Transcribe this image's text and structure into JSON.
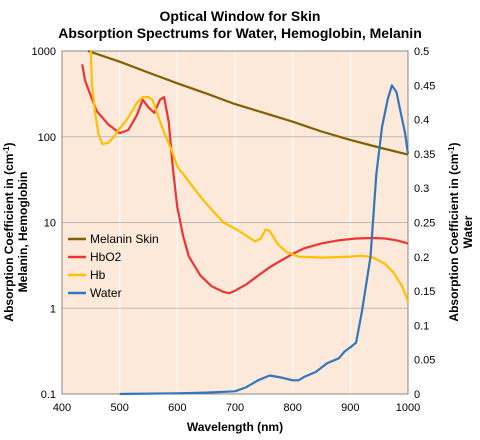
{
  "chart_data": {
    "type": "line",
    "title_line1": "Optical Window for Skin",
    "title_line2": "Absorption Spectrums for Water, Hemoglobin, Melanin",
    "xlabel": "Wavelength (nm)",
    "ylabel_left": {
      "line1_prefix": "Absorption Coefficient in (cm",
      "line1_sup": "-1",
      "line1_suffix": ")",
      "line2": "Melanin, Hemoglobin"
    },
    "ylabel_right": {
      "line1_prefix": "Absorption Coefficient in (cm",
      "line1_sup": "-1",
      "line1_suffix": ")",
      "line2": "Water"
    },
    "xlim": [
      400,
      1000
    ],
    "ylim_left": [
      0.1,
      1000
    ],
    "ylim_right": [
      0,
      0.5
    ],
    "x_ticks": [
      "400",
      "500",
      "600",
      "700",
      "800",
      "900",
      "1000"
    ],
    "y_left_ticks": [
      "0.1",
      "1",
      "10",
      "100",
      "1000"
    ],
    "y_right_ticks": [
      "0",
      "0.05",
      "0.1",
      "0.15",
      "0.2",
      "0.25",
      "0.3",
      "0.35",
      "0.4",
      "0.45",
      "0.5"
    ],
    "background_color": "#fde9d9",
    "grid": true,
    "legend_position": "left-middle",
    "series": [
      {
        "name": "Melanin Skin",
        "axis": "left",
        "color": "#806000",
        "points": [
          [
            445,
            1000
          ],
          [
            500,
            750
          ],
          [
            550,
            560
          ],
          [
            600,
            420
          ],
          [
            650,
            320
          ],
          [
            700,
            240
          ],
          [
            750,
            190
          ],
          [
            800,
            150
          ],
          [
            850,
            115
          ],
          [
            900,
            92
          ],
          [
            950,
            75
          ],
          [
            1000,
            62
          ]
        ]
      },
      {
        "name": "HbO2",
        "axis": "left",
        "color": "#ee3333",
        "points": [
          [
            435,
            700
          ],
          [
            440,
            450
          ],
          [
            450,
            300
          ],
          [
            460,
            200
          ],
          [
            480,
            140
          ],
          [
            500,
            110
          ],
          [
            515,
            120
          ],
          [
            530,
            180
          ],
          [
            540,
            270
          ],
          [
            550,
            220
          ],
          [
            560,
            190
          ],
          [
            570,
            270
          ],
          [
            577,
            290
          ],
          [
            585,
            150
          ],
          [
            592,
            45
          ],
          [
            600,
            15
          ],
          [
            610,
            7
          ],
          [
            620,
            4
          ],
          [
            640,
            2.4
          ],
          [
            660,
            1.8
          ],
          [
            680,
            1.55
          ],
          [
            690,
            1.5
          ],
          [
            700,
            1.6
          ],
          [
            720,
            1.9
          ],
          [
            740,
            2.4
          ],
          [
            760,
            3.0
          ],
          [
            780,
            3.6
          ],
          [
            800,
            4.3
          ],
          [
            820,
            5.0
          ],
          [
            850,
            5.7
          ],
          [
            880,
            6.2
          ],
          [
            910,
            6.5
          ],
          [
            940,
            6.6
          ],
          [
            960,
            6.5
          ],
          [
            980,
            6.2
          ],
          [
            1000,
            5.7
          ]
        ]
      },
      {
        "name": "Hb",
        "axis": "left",
        "color": "#ffc000",
        "points": [
          [
            450,
            1000
          ],
          [
            452,
            400
          ],
          [
            457,
            200
          ],
          [
            463,
            110
          ],
          [
            470,
            82
          ],
          [
            480,
            85
          ],
          [
            490,
            100
          ],
          [
            500,
            125
          ],
          [
            510,
            150
          ],
          [
            520,
            190
          ],
          [
            530,
            250
          ],
          [
            540,
            290
          ],
          [
            550,
            290
          ],
          [
            557,
            270
          ],
          [
            567,
            170
          ],
          [
            580,
            100
          ],
          [
            590,
            70
          ],
          [
            600,
            45
          ],
          [
            620,
            30
          ],
          [
            640,
            20
          ],
          [
            660,
            14
          ],
          [
            680,
            10
          ],
          [
            700,
            8.5
          ],
          [
            720,
            7
          ],
          [
            735,
            6
          ],
          [
            745,
            6.5
          ],
          [
            753,
            8.3
          ],
          [
            760,
            8.0
          ],
          [
            775,
            5.5
          ],
          [
            790,
            4.5
          ],
          [
            810,
            4.0
          ],
          [
            850,
            3.9
          ],
          [
            900,
            4.0
          ],
          [
            920,
            4.1
          ],
          [
            940,
            3.9
          ],
          [
            960,
            3.3
          ],
          [
            975,
            2.6
          ],
          [
            990,
            1.8
          ],
          [
            1000,
            1.2
          ]
        ]
      },
      {
        "name": "Water",
        "axis": "right",
        "color": "#3377bb",
        "points": [
          [
            500,
            0
          ],
          [
            600,
            0.001
          ],
          [
            650,
            0.002
          ],
          [
            700,
            0.004
          ],
          [
            720,
            0.01
          ],
          [
            740,
            0.02
          ],
          [
            760,
            0.027
          ],
          [
            780,
            0.024
          ],
          [
            800,
            0.02
          ],
          [
            810,
            0.02
          ],
          [
            820,
            0.025
          ],
          [
            840,
            0.032
          ],
          [
            860,
            0.045
          ],
          [
            880,
            0.052
          ],
          [
            890,
            0.062
          ],
          [
            900,
            0.068
          ],
          [
            910,
            0.075
          ],
          [
            920,
            0.12
          ],
          [
            935,
            0.2
          ],
          [
            945,
            0.32
          ],
          [
            955,
            0.39
          ],
          [
            965,
            0.43
          ],
          [
            972,
            0.45
          ],
          [
            980,
            0.44
          ],
          [
            985,
            0.42
          ],
          [
            995,
            0.38
          ],
          [
            1000,
            0.35
          ]
        ]
      }
    ]
  }
}
